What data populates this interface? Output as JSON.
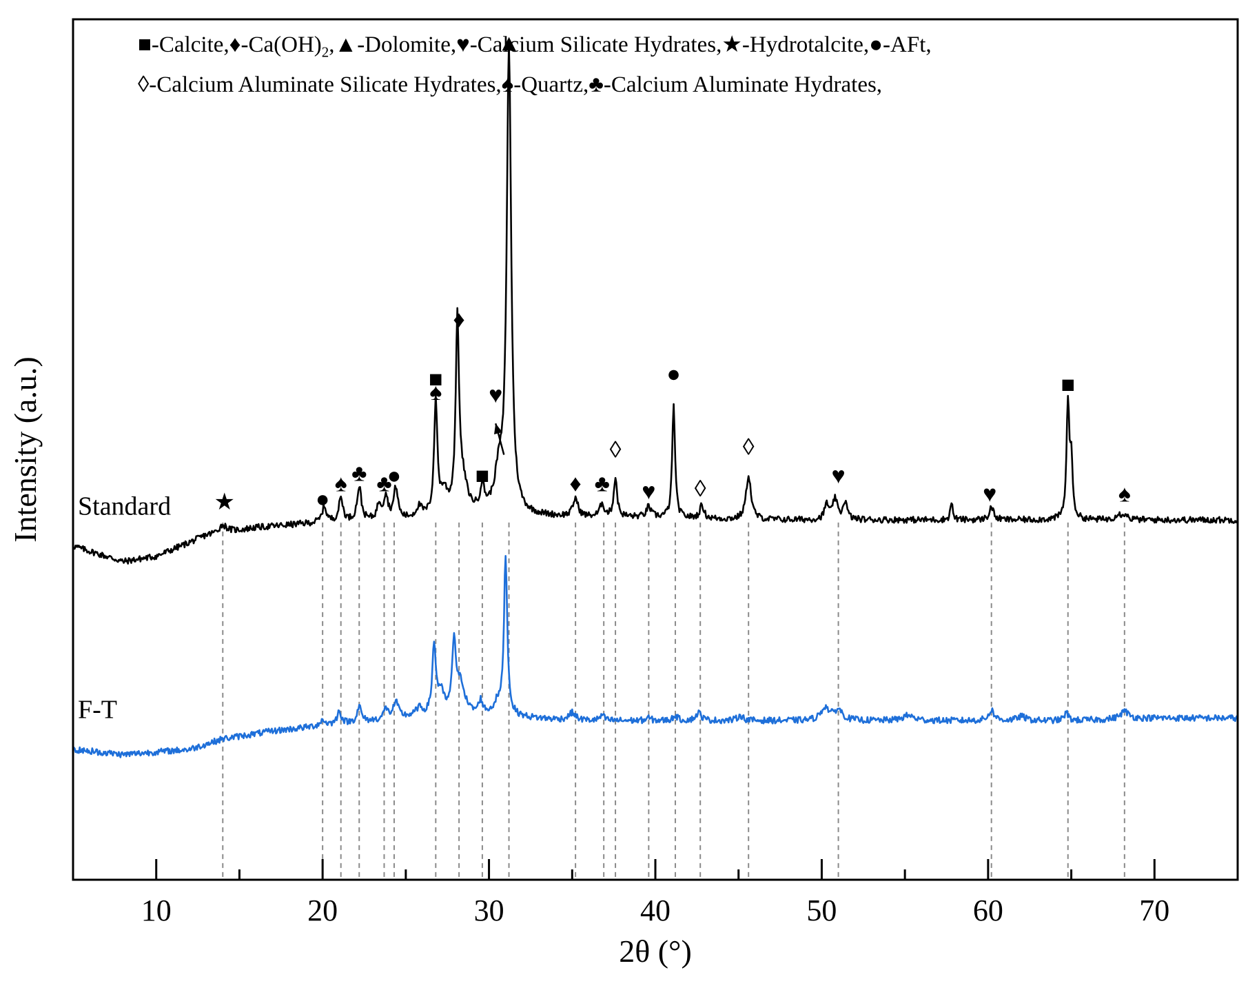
{
  "chart_data": {
    "type": "line",
    "title": "",
    "xlabel": "2θ (°)",
    "ylabel": "Intensity (a.u.)",
    "xlim": [
      5,
      75
    ],
    "x_ticks": [
      10,
      20,
      30,
      40,
      50,
      60,
      70
    ],
    "y_tick_labels": false,
    "grid": false,
    "legend_placement": "top",
    "legend": {
      "line1": [
        {
          "symbol": "■",
          "text": "-Calcite,"
        },
        {
          "symbol": "♦",
          "text": "-Ca(OH)",
          "sub": "2",
          "after": ","
        },
        {
          "symbol": "▲",
          "text": "-Dolomite,"
        },
        {
          "symbol": "♥",
          "text": "-Calcium Silicate Hydrates,"
        },
        {
          "symbol": "★",
          "text": "-Hydrotalcite,"
        },
        {
          "symbol": "●",
          "text": "-AFt,"
        }
      ],
      "line2": [
        {
          "symbol": "◊",
          "text": "-Calcium Aluminate Silicate Hydrates,"
        },
        {
          "symbol": "♠",
          "text": "-Quartz,"
        },
        {
          "symbol": "♣",
          "text": "-Calcium Aluminate Hydrates,"
        }
      ]
    },
    "series": [
      {
        "name": "Standard",
        "color": "#000000",
        "baseline": [
          [
            5,
            0.64
          ],
          [
            8,
            0.61
          ],
          [
            10,
            0.62
          ],
          [
            13,
            0.66
          ],
          [
            16,
            0.675
          ],
          [
            20,
            0.685
          ],
          [
            25,
            0.69
          ],
          [
            30,
            0.7
          ],
          [
            35,
            0.695
          ],
          [
            40,
            0.695
          ],
          [
            45,
            0.69
          ],
          [
            50,
            0.69
          ],
          [
            55,
            0.69
          ],
          [
            60,
            0.69
          ],
          [
            65,
            0.69
          ],
          [
            70,
            0.69
          ],
          [
            75,
            0.69
          ]
        ],
        "peaks": [
          {
            "x": 14.0,
            "h": 0.015,
            "w": 0.3
          },
          {
            "x": 20.1,
            "h": 0.03,
            "w": 0.15
          },
          {
            "x": 21.1,
            "h": 0.045,
            "w": 0.15
          },
          {
            "x": 22.2,
            "h": 0.065,
            "w": 0.15
          },
          {
            "x": 23.4,
            "h": 0.03,
            "w": 0.15
          },
          {
            "x": 23.8,
            "h": 0.045,
            "w": 0.15
          },
          {
            "x": 24.4,
            "h": 0.06,
            "w": 0.15
          },
          {
            "x": 25.8,
            "h": 0.02,
            "w": 0.2
          },
          {
            "x": 26.8,
            "h": 0.215,
            "w": 0.12
          },
          {
            "x": 27.3,
            "h": 0.04,
            "w": 0.25
          },
          {
            "x": 28.1,
            "h": 0.35,
            "w": 0.12
          },
          {
            "x": 28.4,
            "h": 0.06,
            "w": 0.35
          },
          {
            "x": 29.6,
            "h": 0.045,
            "w": 0.15
          },
          {
            "x": 30.6,
            "h": 0.07,
            "w": 0.3
          },
          {
            "x": 31.2,
            "h": 0.885,
            "w": 0.16
          },
          {
            "x": 35.2,
            "h": 0.035,
            "w": 0.18
          },
          {
            "x": 36.8,
            "h": 0.025,
            "w": 0.15
          },
          {
            "x": 37.6,
            "h": 0.075,
            "w": 0.12
          },
          {
            "x": 39.6,
            "h": 0.02,
            "w": 0.15
          },
          {
            "x": 41.1,
            "h": 0.215,
            "w": 0.1
          },
          {
            "x": 42.8,
            "h": 0.025,
            "w": 0.15
          },
          {
            "x": 45.6,
            "h": 0.085,
            "w": 0.18
          },
          {
            "x": 50.3,
            "h": 0.03,
            "w": 0.15
          },
          {
            "x": 50.8,
            "h": 0.04,
            "w": 0.15
          },
          {
            "x": 51.4,
            "h": 0.035,
            "w": 0.15
          },
          {
            "x": 57.8,
            "h": 0.035,
            "w": 0.08
          },
          {
            "x": 60.2,
            "h": 0.025,
            "w": 0.15
          },
          {
            "x": 64.8,
            "h": 0.22,
            "w": 0.1
          },
          {
            "x": 65.0,
            "h": 0.1,
            "w": 0.1
          },
          {
            "x": 67.8,
            "h": 0.01,
            "w": 0.2
          },
          {
            "x": 68.2,
            "h": 0.01,
            "w": 0.2
          }
        ]
      },
      {
        "name": "F-T",
        "color": "#1e6fd9",
        "baseline": [
          [
            5,
            0.25
          ],
          [
            8,
            0.24
          ],
          [
            12,
            0.25
          ],
          [
            14,
            0.27
          ],
          [
            17,
            0.285
          ],
          [
            20,
            0.295
          ],
          [
            25,
            0.31
          ],
          [
            30,
            0.315
          ],
          [
            35,
            0.305
          ],
          [
            40,
            0.305
          ],
          [
            45,
            0.305
          ],
          [
            50,
            0.305
          ],
          [
            55,
            0.305
          ],
          [
            60,
            0.305
          ],
          [
            65,
            0.305
          ],
          [
            70,
            0.31
          ],
          [
            75,
            0.31
          ]
        ],
        "peaks": [
          {
            "x": 20.0,
            "h": 0.01,
            "w": 0.2
          },
          {
            "x": 21.0,
            "h": 0.025,
            "w": 0.15
          },
          {
            "x": 22.2,
            "h": 0.03,
            "w": 0.15
          },
          {
            "x": 23.8,
            "h": 0.02,
            "w": 0.15
          },
          {
            "x": 24.4,
            "h": 0.03,
            "w": 0.2
          },
          {
            "x": 25.8,
            "h": 0.015,
            "w": 0.25
          },
          {
            "x": 26.7,
            "h": 0.13,
            "w": 0.13
          },
          {
            "x": 27.1,
            "h": 0.04,
            "w": 0.25
          },
          {
            "x": 27.9,
            "h": 0.135,
            "w": 0.13
          },
          {
            "x": 28.3,
            "h": 0.06,
            "w": 0.3
          },
          {
            "x": 29.5,
            "h": 0.025,
            "w": 0.15
          },
          {
            "x": 30.5,
            "h": 0.02,
            "w": 0.25
          },
          {
            "x": 31.0,
            "h": 0.305,
            "w": 0.12
          },
          {
            "x": 35.0,
            "h": 0.015,
            "w": 0.25
          },
          {
            "x": 36.8,
            "h": 0.01,
            "w": 0.15
          },
          {
            "x": 39.6,
            "h": 0.005,
            "w": 0.15
          },
          {
            "x": 41.2,
            "h": 0.01,
            "w": 0.15
          },
          {
            "x": 42.6,
            "h": 0.015,
            "w": 0.2
          },
          {
            "x": 45.1,
            "h": 0.01,
            "w": 0.2
          },
          {
            "x": 50.2,
            "h": 0.025,
            "w": 0.3
          },
          {
            "x": 51.0,
            "h": 0.02,
            "w": 0.3
          },
          {
            "x": 55.2,
            "h": 0.01,
            "w": 0.4
          },
          {
            "x": 60.2,
            "h": 0.02,
            "w": 0.2
          },
          {
            "x": 62.0,
            "h": 0.008,
            "w": 0.3
          },
          {
            "x": 64.7,
            "h": 0.015,
            "w": 0.15
          },
          {
            "x": 68.2,
            "h": 0.015,
            "w": 0.3
          }
        ]
      }
    ],
    "series_labels": [
      {
        "text": "Standard",
        "series": "Standard"
      },
      {
        "text": "F-T",
        "series": "F-T"
      }
    ],
    "reference_lines_x": [
      14.0,
      20.0,
      21.1,
      22.2,
      23.7,
      24.3,
      26.8,
      28.2,
      29.6,
      31.2,
      35.2,
      36.9,
      37.6,
      39.6,
      41.2,
      42.7,
      45.6,
      51.0,
      60.2,
      64.8,
      68.2
    ],
    "annotations": [
      {
        "symbol": "★",
        "x": 14.1,
        "y": 0.71
      },
      {
        "symbol": "●",
        "x": 20.0,
        "y": 0.715
      },
      {
        "symbol": "♠",
        "x": 21.1,
        "y": 0.745
      },
      {
        "symbol": "♣",
        "x": 22.2,
        "y": 0.765
      },
      {
        "symbol": "♣",
        "x": 23.7,
        "y": 0.745
      },
      {
        "symbol": "●",
        "x": 24.3,
        "y": 0.76
      },
      {
        "symbol": "♠",
        "x": 26.8,
        "y": 0.92
      },
      {
        "symbol": "■",
        "x": 26.8,
        "y": 0.945
      },
      {
        "symbol": "♦",
        "x": 28.2,
        "y": 1.06
      },
      {
        "symbol": "■",
        "x": 29.6,
        "y": 0.76
      },
      {
        "symbol": "♥",
        "x": 30.4,
        "y": 0.915
      },
      {
        "symbol": "▲",
        "x": 31.2,
        "y": 1.59
      },
      {
        "symbol": "♦",
        "x": 35.2,
        "y": 0.745
      },
      {
        "symbol": "♣",
        "x": 36.8,
        "y": 0.745
      },
      {
        "symbol": "◊",
        "x": 37.6,
        "y": 0.81
      },
      {
        "symbol": "♥",
        "x": 39.6,
        "y": 0.73
      },
      {
        "symbol": "●",
        "x": 41.1,
        "y": 0.955
      },
      {
        "symbol": "◊",
        "x": 42.7,
        "y": 0.735
      },
      {
        "symbol": "◊",
        "x": 45.6,
        "y": 0.815
      },
      {
        "symbol": "♥",
        "x": 51.0,
        "y": 0.76
      },
      {
        "symbol": "♥",
        "x": 60.1,
        "y": 0.725
      },
      {
        "symbol": "■",
        "x": 64.8,
        "y": 0.935
      },
      {
        "symbol": "♠",
        "x": 68.2,
        "y": 0.725
      }
    ],
    "arrow": {
      "from": [
        30.4,
        0.875
      ],
      "to": [
        30.9,
        0.815
      ]
    },
    "ylim": [
      0,
      1.65
    ]
  }
}
